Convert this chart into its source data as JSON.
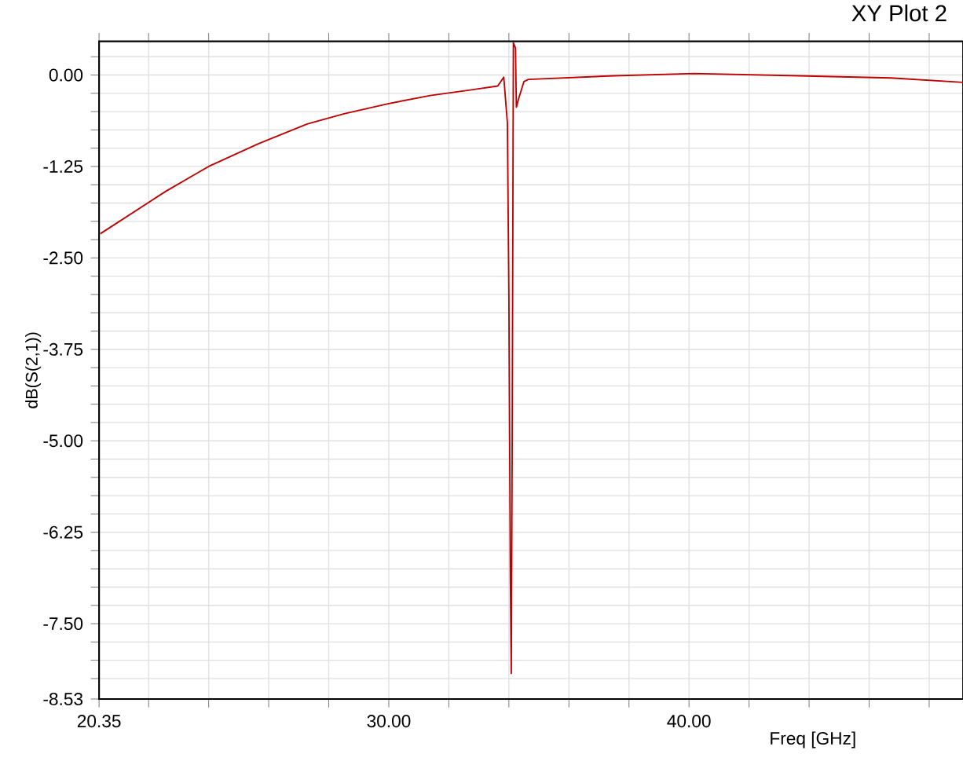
{
  "chart_data": {
    "type": "line",
    "title": "XY Plot 2",
    "xlabel": "Freq [GHz]",
    "ylabel": "dB(S(2,1))",
    "x": [
      20.39,
      22.57,
      24.0,
      25.65,
      27.28,
      28.51,
      30.0,
      31.38,
      32.8,
      33.63,
      33.83,
      33.95,
      34.0,
      34.05,
      34.08,
      34.11,
      34.15,
      34.22,
      34.25,
      34.32,
      34.5,
      34.65,
      37.51,
      40.17,
      43.65,
      46.72,
      49.13
    ],
    "series": [
      {
        "color": "#c00000",
        "values": [
          -2.17,
          -1.59,
          -1.25,
          -0.94,
          -0.67,
          -0.53,
          -0.39,
          -0.28,
          -0.2,
          -0.15,
          -0.03,
          -0.65,
          -3.03,
          -6.88,
          -8.18,
          -5.09,
          0.44,
          0.37,
          -0.44,
          -0.33,
          -0.09,
          -0.06,
          -0.01,
          0.02,
          -0.01,
          -0.04,
          -0.1
        ]
      }
    ],
    "xlim": [
      20.35,
      49.13
    ],
    "ylim": [
      -8.53,
      0.46
    ],
    "xticks": [
      {
        "value": 20.35,
        "label": "20.35"
      },
      {
        "value": 22,
        "label": null
      },
      {
        "value": 24,
        "label": null
      },
      {
        "value": 26,
        "label": null
      },
      {
        "value": 28,
        "label": null
      },
      {
        "value": 30,
        "label": "30.00"
      },
      {
        "value": 32,
        "label": null
      },
      {
        "value": 34,
        "label": null
      },
      {
        "value": 36,
        "label": null
      },
      {
        "value": 38,
        "label": null
      },
      {
        "value": 40,
        "label": "40.00"
      },
      {
        "value": 42,
        "label": null
      },
      {
        "value": 44,
        "label": null
      },
      {
        "value": 46,
        "label": null
      },
      {
        "value": 48,
        "label": null
      }
    ],
    "yticks": [
      {
        "value": -8.53,
        "label": "-8.53"
      },
      {
        "value": -8.25,
        "label": null
      },
      {
        "value": -8.0,
        "label": null
      },
      {
        "value": -7.75,
        "label": null
      },
      {
        "value": -7.5,
        "label": "-7.50"
      },
      {
        "value": -7.25,
        "label": null
      },
      {
        "value": -7.0,
        "label": null
      },
      {
        "value": -6.75,
        "label": null
      },
      {
        "value": -6.5,
        "label": null
      },
      {
        "value": -6.25,
        "label": "-6.25"
      },
      {
        "value": -6.0,
        "label": null
      },
      {
        "value": -5.75,
        "label": null
      },
      {
        "value": -5.5,
        "label": null
      },
      {
        "value": -5.25,
        "label": null
      },
      {
        "value": -5.0,
        "label": "-5.00"
      },
      {
        "value": -4.75,
        "label": null
      },
      {
        "value": -4.5,
        "label": null
      },
      {
        "value": -4.25,
        "label": null
      },
      {
        "value": -4.0,
        "label": null
      },
      {
        "value": -3.75,
        "label": "-3.75"
      },
      {
        "value": -3.5,
        "label": null
      },
      {
        "value": -3.25,
        "label": null
      },
      {
        "value": -3.0,
        "label": null
      },
      {
        "value": -2.75,
        "label": null
      },
      {
        "value": -2.5,
        "label": "-2.50"
      },
      {
        "value": -2.25,
        "label": null
      },
      {
        "value": -2.0,
        "label": null
      },
      {
        "value": -1.75,
        "label": null
      },
      {
        "value": -1.5,
        "label": null
      },
      {
        "value": -1.25,
        "label": "-1.25"
      },
      {
        "value": -1.0,
        "label": null
      },
      {
        "value": -0.75,
        "label": null
      },
      {
        "value": -0.5,
        "label": null
      },
      {
        "value": -0.25,
        "label": null
      },
      {
        "value": 0.0,
        "label": "0.00"
      },
      {
        "value": 0.25,
        "label": null
      }
    ],
    "grid": true,
    "marker": "none",
    "line_style": "solid"
  }
}
